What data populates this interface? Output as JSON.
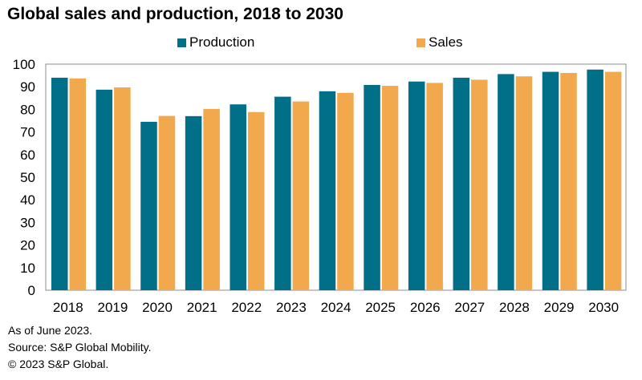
{
  "chart_data": {
    "type": "bar",
    "title": "Global sales and production, 2018 to 2030",
    "categories": [
      "2018",
      "2019",
      "2020",
      "2021",
      "2022",
      "2023",
      "2024",
      "2025",
      "2026",
      "2027",
      "2028",
      "2029",
      "2030"
    ],
    "series": [
      {
        "name": "Production",
        "color": "#006f87",
        "values": [
          94,
          88.7,
          74.5,
          77,
          82.2,
          85.6,
          88,
          90.8,
          92.3,
          94,
          95.6,
          96.6,
          97.6
        ]
      },
      {
        "name": "Sales",
        "color": "#f2a94d",
        "values": [
          93.7,
          89.7,
          77.1,
          80.2,
          78.8,
          83.5,
          87.3,
          90.4,
          91.7,
          93.1,
          94.6,
          96.1,
          96.6
        ]
      }
    ],
    "ylim": [
      0,
      100
    ],
    "yticks": [
      0,
      10,
      20,
      30,
      40,
      50,
      60,
      70,
      80,
      90,
      100
    ],
    "xlabel": "",
    "ylabel": "",
    "legend_position": "top",
    "grid": false
  },
  "notes": [
    "As of June 2023.",
    "Source: S&P Global Mobility.",
    "© 2023 S&P Global."
  ]
}
